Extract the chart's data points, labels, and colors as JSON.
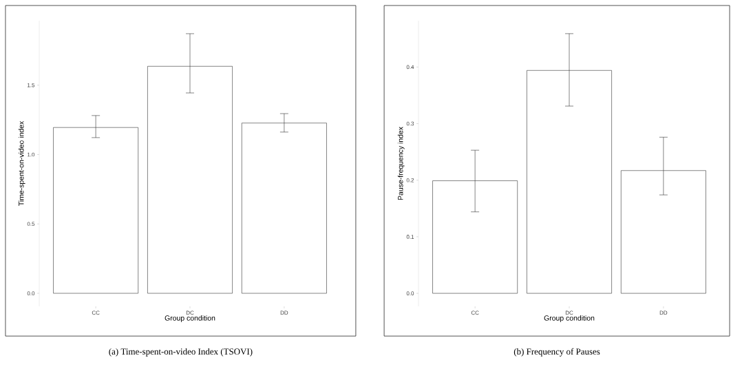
{
  "chart_data": [
    {
      "type": "bar",
      "xlabel": "Group condition",
      "ylabel": "Time-spent-on-video index",
      "categories": [
        "CC",
        "DC",
        "DD"
      ],
      "values": [
        1.195,
        1.636,
        1.227
      ],
      "errors": [
        [
          1.122,
          1.281
        ],
        [
          1.444,
          1.871
        ],
        [
          1.162,
          1.295
        ]
      ],
      "color": "#ffffff",
      "ylim": [
        -0.094,
        1.965
      ],
      "yticks": [
        {
          "value": 0,
          "label": "0.0"
        },
        {
          "value": 0.5,
          "label": "0.5"
        },
        {
          "value": 1,
          "label": "1.0"
        },
        {
          "value": 1.5,
          "label": "1.5"
        }
      ],
      "annotations": [
        "(a) Time-spent-on-video Index (TSOVI)"
      ]
    },
    {
      "type": "bar",
      "xlabel": "Group condition",
      "ylabel": "Pause-frequency index",
      "categories": [
        "CC",
        "DC",
        "DD"
      ],
      "values": [
        0.199,
        0.394,
        0.217
      ],
      "errors": [
        [
          0.144,
          0.253
        ],
        [
          0.331,
          0.459
        ],
        [
          0.174,
          0.276
        ]
      ],
      "color": "#ffffff",
      "ylim": [
        -0.023,
        0.482
      ],
      "yticks": [
        {
          "value": 0,
          "label": "0.0"
        },
        {
          "value": 0.1,
          "label": "0.1"
        },
        {
          "value": 0.2,
          "label": "0.2"
        },
        {
          "value": 0.3,
          "label": "0.3"
        },
        {
          "value": 0.4,
          "label": "0.4"
        }
      ],
      "annotations": [
        "(b) Frequency of Pauses"
      ]
    }
  ]
}
